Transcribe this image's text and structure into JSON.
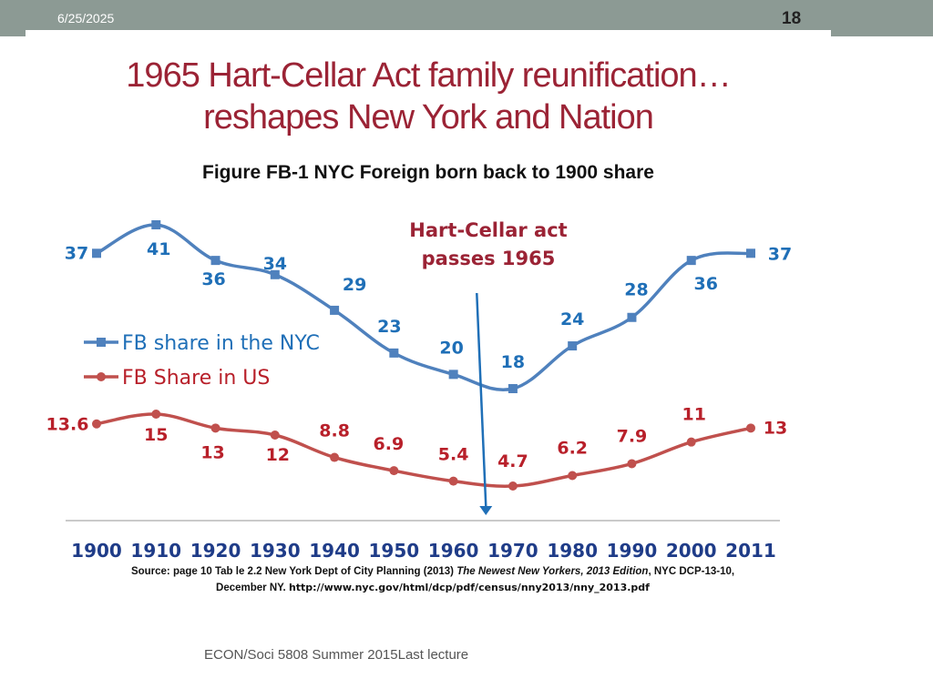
{
  "header": {
    "date": "6/25/2025",
    "page_number": "18"
  },
  "slide": {
    "title_line1": "1965 Hart-Cellar Act family reunification…",
    "title_line2": "reshapes New York and Nation",
    "figure_title": "Figure FB-1 NYC Foreign born back to 1900 share"
  },
  "chart_data": {
    "type": "line",
    "categories": [
      "1900",
      "1910",
      "1920",
      "1930",
      "1940",
      "1950",
      "1960",
      "1970",
      "1980",
      "1990",
      "2000",
      "2011"
    ],
    "series": [
      {
        "name": "FB share in the NYC",
        "color": "#4f81bd",
        "label_color": "#1f6fb7",
        "values": [
          37,
          41,
          36,
          34,
          29,
          23,
          20,
          18,
          24,
          28,
          36,
          37
        ],
        "labels": [
          "37",
          "41",
          "36",
          "34",
          "29",
          "23",
          "20",
          "18",
          "24",
          "28",
          "36",
          "37"
        ]
      },
      {
        "name": "FB Share in US",
        "color": "#c0504d",
        "label_color": "#b8202a",
        "values": [
          13.6,
          15,
          13,
          12,
          8.8,
          6.9,
          5.4,
          4.7,
          6.2,
          7.9,
          11,
          13
        ],
        "labels": [
          "13.6",
          "15",
          "13",
          "12",
          "8.8",
          "6.9",
          "5.4",
          "4.7",
          "6.2",
          "7.9",
          "11",
          "13"
        ]
      }
    ],
    "annotation": {
      "line1": "Hart-Cellar act",
      "line2": "passes 1965",
      "year": 1965,
      "color": "#9b2335",
      "arrow_color": "#1f6fb7"
    },
    "legend_position": "left"
  },
  "source": {
    "prefix": "Source: page 10  Tab le 2.2 New York Dept of City Planning (2013) ",
    "publication": "The Newest New Yorkers, 2013 Edition",
    "middle": ", NYC DCP-13-10, December NY. ",
    "url": "http://www.nyc.gov/html/dcp/pdf/census/nny2013/nny_2013.pdf"
  },
  "footer": {
    "text": "ECON/Soci 5808 Summer 2015Last lecture"
  }
}
